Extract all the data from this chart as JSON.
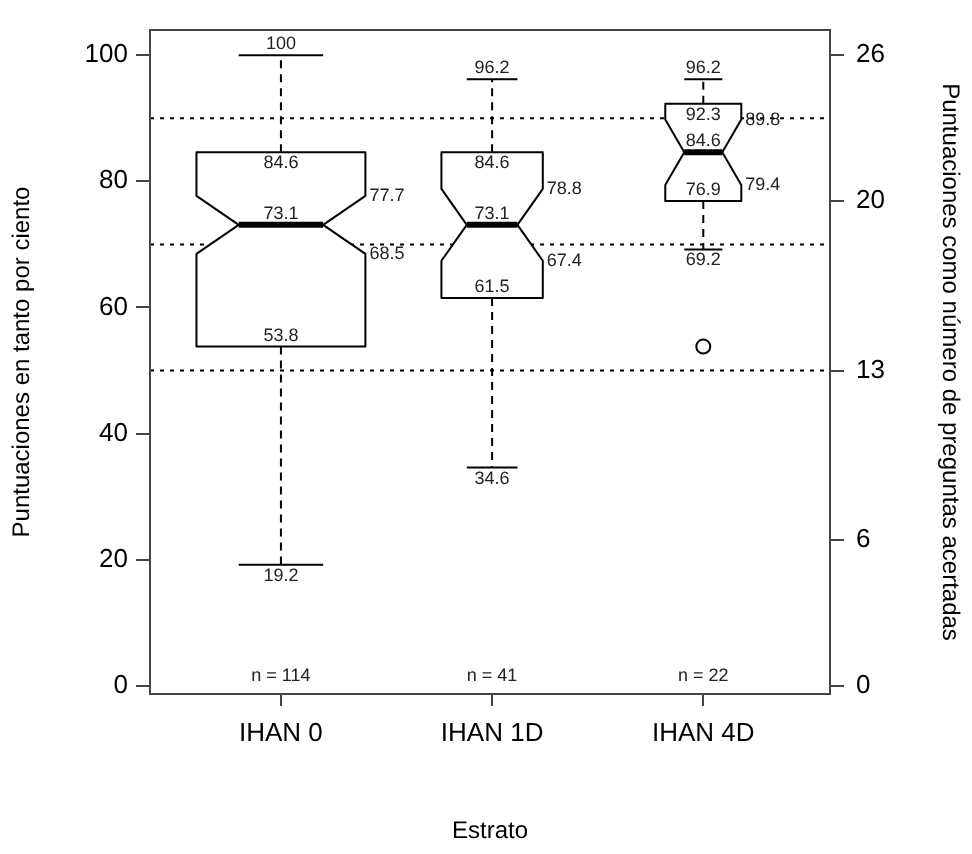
{
  "chart_data": {
    "type": "box",
    "xlabel": "Estrato",
    "ylabel": "Puntuaciones en tanto por ciento",
    "y2label": "Puntuaciones como número de preguntas acertadas",
    "categories": [
      "IHAN 0",
      "IHAN 1D",
      "IHAN 4D"
    ],
    "boxes": [
      {
        "low": 19.2,
        "q1": 53.8,
        "median": 73.1,
        "q3": 84.6,
        "high": 100
      },
      {
        "low": 34.6,
        "q1": 61.5,
        "median": 73.1,
        "q3": 84.6,
        "high": 96.2
      },
      {
        "low": 69.2,
        "q1": 76.9,
        "median": 84.6,
        "q3": 92.3,
        "high": 96.2,
        "outliers": [
          53.8
        ]
      }
    ],
    "color": "#000000",
    "ylim": [
      -1.3,
      104
    ],
    "yticks": [
      0,
      20,
      40,
      60,
      80,
      100
    ],
    "y2lim": [
      -0.338,
      27.04
    ],
    "y2ticks": [
      0,
      6,
      13,
      20,
      26
    ],
    "ref_lines": [
      {
        "axis": "y",
        "value": 90,
        "color": "#000000",
        "line_style": "dotted"
      },
      {
        "axis": "y",
        "value": 70,
        "color": "#000000",
        "line_style": "dotted"
      },
      {
        "axis": "y",
        "value": 50,
        "color": "#000000",
        "line_style": "dotted"
      }
    ],
    "grid": false,
    "annotations": [
      "77.7",
      "68.5",
      "78.8",
      "67.4",
      "89.8",
      "79.4",
      "n = 114",
      "n = 41",
      "n = 22",
      {
        "text": "100",
        "x": "IHAN 0",
        "y": 100
      },
      {
        "text": "84.6",
        "x": "IHAN 0",
        "y": 84.6
      },
      {
        "text": "73.1",
        "x": "IHAN 0",
        "y": 73.1
      },
      {
        "text": "53.8",
        "x": "IHAN 0",
        "y": 53.8
      },
      {
        "text": "19.2",
        "x": "IHAN 0",
        "y": 19.2
      },
      {
        "text": "96.2",
        "x": "IHAN 1D",
        "y": 96.2
      },
      {
        "text": "84.6",
        "x": "IHAN 1D",
        "y": 84.6
      },
      {
        "text": "73.1",
        "x": "IHAN 1D",
        "y": 73.1
      },
      {
        "text": "61.5",
        "x": "IHAN 1D",
        "y": 61.5
      },
      {
        "text": "34.6",
        "x": "IHAN 1D",
        "y": 34.6
      },
      {
        "text": "96.2",
        "x": "IHAN 4D",
        "y": 96.2
      },
      {
        "text": "92.3",
        "x": "IHAN 4D",
        "y": 92.3
      },
      {
        "text": "84.6",
        "x": "IHAN 4D",
        "y": 84.6
      },
      {
        "text": "76.9",
        "x": "IHAN 4D",
        "y": 76.9
      },
      {
        "text": "69.2",
        "x": "IHAN 4D",
        "y": 69.2
      }
    ]
  }
}
